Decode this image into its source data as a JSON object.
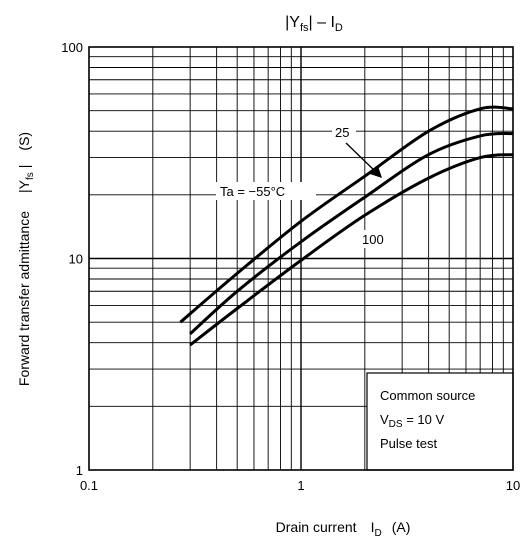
{
  "chart_data": {
    "type": "line",
    "title": {
      "main": "|Y",
      "main_sub": "fs",
      "mid": "| – I",
      "end_sub": "D"
    },
    "xlabel": {
      "main": "Drain current",
      "symbol": "I",
      "symbol_sub": "D",
      "unit": "(A)"
    },
    "ylabel": {
      "main": "Forward transfer admittance",
      "symbol_left": "|Y",
      "symbol_sub": "fs",
      "symbol_right": "|",
      "unit": "(S)"
    },
    "x_scale": "log",
    "y_scale": "log",
    "xlim": [
      0.1,
      10
    ],
    "ylim": [
      1,
      100
    ],
    "grid": true,
    "x_tick_labels": [
      "0.1",
      "1",
      "10"
    ],
    "y_tick_labels": [
      "1",
      "10",
      "100"
    ],
    "series": [
      {
        "name": "Ta = −55°C",
        "x": [
          0.27,
          0.5,
          1,
          2,
          4,
          7,
          10
        ],
        "y": [
          5.0,
          8.5,
          15,
          24.5,
          40,
          51,
          51
        ]
      },
      {
        "name": "25",
        "x": [
          0.3,
          0.5,
          1,
          2,
          4,
          7,
          10
        ],
        "y": [
          4.4,
          7.0,
          12,
          19.5,
          31,
          38,
          39
        ]
      },
      {
        "name": "100",
        "x": [
          0.3,
          0.5,
          1,
          2,
          4,
          7,
          10
        ],
        "y": [
          3.9,
          5.8,
          9.8,
          16,
          24,
          30,
          31
        ]
      }
    ],
    "series_labels": {
      "cold": "Ta = −55°C",
      "room": "25",
      "hot": "100"
    },
    "conditions": {
      "line1": "Common source",
      "line2_symbol": "V",
      "line2_sub": "DS",
      "line2_value": " = 10 V",
      "line3": "Pulse test"
    }
  }
}
